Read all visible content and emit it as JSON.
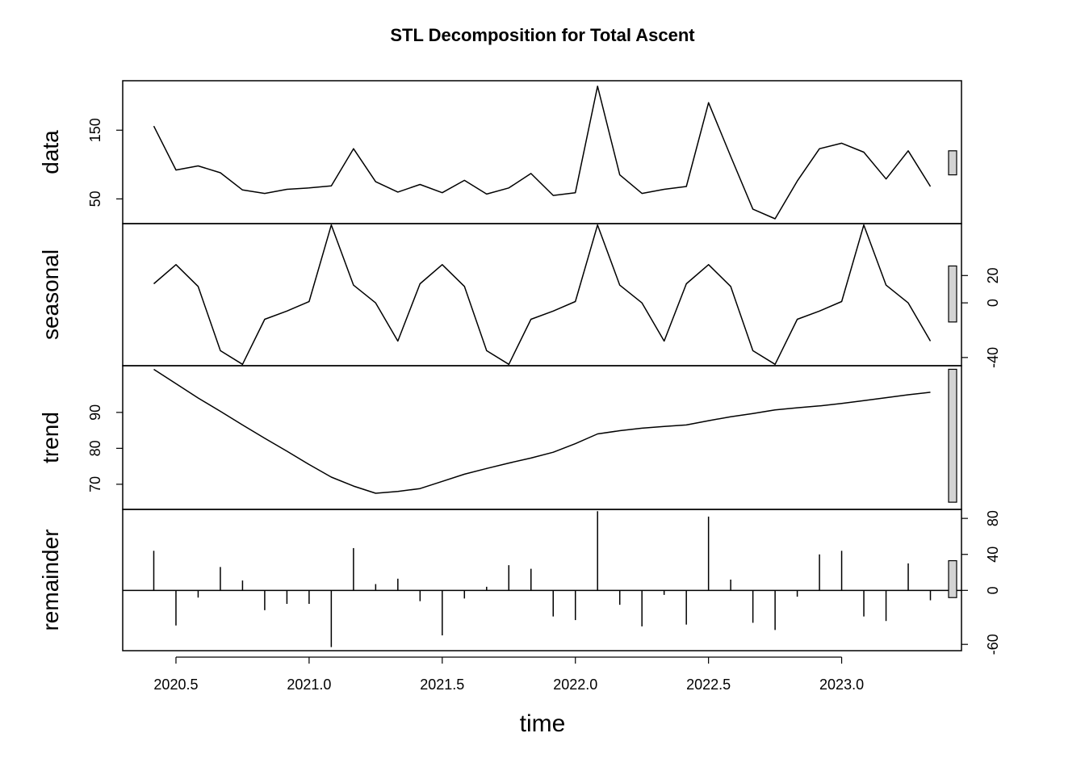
{
  "chart_data": {
    "type": "line",
    "title": "STL Decomposition for Total Ascent",
    "xlabel": "time",
    "x_axis": {
      "ticks": [
        2020.5,
        2021.0,
        2021.5,
        2022.0,
        2022.5,
        2023.0
      ],
      "tick_labels": [
        "2020.5",
        "2021.0",
        "2021.5",
        "2022.0",
        "2022.5",
        "2023.0"
      ],
      "xlim": [
        2020.3,
        2023.45
      ]
    },
    "x": [
      2020.4167,
      2020.5,
      2020.5833,
      2020.6667,
      2020.75,
      2020.8333,
      2020.9167,
      2021.0,
      2021.0833,
      2021.1667,
      2021.25,
      2021.3333,
      2021.4167,
      2021.5,
      2021.5833,
      2021.6667,
      2021.75,
      2021.8333,
      2021.9167,
      2022.0,
      2022.0833,
      2022.1667,
      2022.25,
      2022.3333,
      2022.4167,
      2022.5,
      2022.5833,
      2022.6667,
      2022.75,
      2022.8333,
      2022.9167,
      2023.0,
      2023.0833,
      2023.1667,
      2023.25,
      2023.3333
    ],
    "panels": [
      {
        "name": "data",
        "style": "line",
        "ylim": [
          14,
          222
        ],
        "ticks": [
          50,
          150
        ],
        "tick_labels": [
          "50",
          "150"
        ],
        "tick_side": "left",
        "scale_bar": [
          85,
          120
        ],
        "values": [
          156,
          92,
          98,
          88,
          63,
          58,
          64,
          66,
          69,
          123,
          75,
          60,
          71,
          59,
          77,
          57,
          66,
          87,
          55,
          59,
          214,
          85,
          58,
          64,
          68,
          190,
          112,
          35,
          21,
          76,
          123,
          131,
          118,
          79,
          120,
          68
        ]
      },
      {
        "name": "seasonal",
        "style": "line",
        "ylim": [
          -46,
          58
        ],
        "ticks": [
          -40,
          0,
          20
        ],
        "tick_labels": [
          "-40",
          "0",
          "20"
        ],
        "tick_side": "right",
        "scale_bar": [
          -14,
          27
        ],
        "values": [
          14,
          28,
          12,
          -35,
          -45,
          -12,
          -6,
          1,
          57,
          13,
          0,
          -28,
          14,
          28,
          12,
          -35,
          -45,
          -12,
          -6,
          1,
          57,
          13,
          0,
          -28,
          14,
          28,
          12,
          -35,
          -45,
          -12,
          -6,
          1,
          57,
          13,
          0,
          -28
        ]
      },
      {
        "name": "trend",
        "style": "line",
        "ylim": [
          63,
          103
        ],
        "ticks": [
          70,
          80,
          90
        ],
        "tick_labels": [
          "70",
          "80",
          "90"
        ],
        "tick_side": "left",
        "scale_bar": [
          65,
          102
        ],
        "values": [
          102,
          98,
          94,
          90.3,
          86.5,
          82.8,
          79.2,
          75.5,
          72,
          69.5,
          67.5,
          68,
          68.8,
          70.8,
          72.8,
          74.4,
          75.9,
          77.3,
          78.9,
          81.3,
          84,
          84.9,
          85.6,
          86.1,
          86.5,
          87.7,
          88.8,
          89.7,
          90.7,
          91.3,
          91.8,
          92.5,
          93.3,
          94.1,
          94.9,
          95.6
        ]
      },
      {
        "name": "remainder",
        "style": "spike",
        "ylim": [
          -67,
          90
        ],
        "ticks": [
          -60,
          0,
          40,
          80
        ],
        "tick_labels": [
          "-60",
          "0",
          "40",
          "80"
        ],
        "tick_side": "right",
        "scale_bar": [
          -8,
          33
        ],
        "values": [
          44,
          -39,
          -8,
          26,
          11,
          -22,
          -15,
          -15,
          -63,
          47,
          7,
          13,
          -12,
          -50,
          -9,
          4,
          28,
          24,
          -29,
          -33,
          88,
          -16,
          -40,
          -5,
          -38,
          82,
          12,
          -36,
          -44,
          -7,
          40,
          44,
          -29,
          -34,
          30,
          -11
        ]
      }
    ]
  }
}
